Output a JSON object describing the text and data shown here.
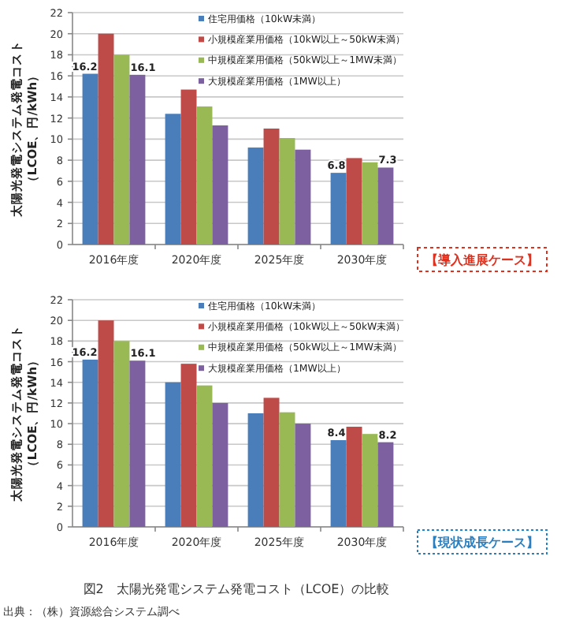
{
  "chart_data": [
    {
      "type": "bar",
      "ylabel": "太陽光発電システム発電コスト（LCOE、円/kWh）",
      "categories": [
        "2016年度",
        "2020年度",
        "2025年度",
        "2030年度"
      ],
      "ylim": [
        0,
        22
      ],
      "yticks": [
        0,
        2,
        4,
        6,
        8,
        10,
        12,
        14,
        16,
        18,
        20,
        22
      ],
      "grid": "y",
      "legend": "top right",
      "series": [
        {
          "name": "住宅用価格（10kW未満）",
          "color": "#4a7ebb",
          "values": [
            16.2,
            12.4,
            9.2,
            6.8
          ],
          "value_labels": [
            "16.2",
            null,
            null,
            "6.8"
          ]
        },
        {
          "name": "小規模産業用価格（10kW以上～50kW未満）",
          "color": "#be4b48",
          "values": [
            20,
            14.7,
            11.0,
            8.2
          ]
        },
        {
          "name": "中規模産業用価格（50kW以上～1MW未満）",
          "color": "#98b954",
          "values": [
            18,
            13.1,
            10.1,
            7.8
          ]
        },
        {
          "name": "大規模産業用価格（1MW以上）",
          "color": "#7d60a0",
          "values": [
            16.1,
            11.3,
            9.0,
            7.3
          ],
          "value_labels": [
            "16.1",
            null,
            null,
            "7.3"
          ]
        }
      ],
      "annotations": [
        "【導入進展ケース】"
      ]
    },
    {
      "type": "bar",
      "ylabel": "太陽光発電システム発電コスト（LCOE、円/kWh）",
      "categories": [
        "2016年度",
        "2020年度",
        "2025年度",
        "2030年度"
      ],
      "ylim": [
        0,
        22
      ],
      "yticks": [
        0,
        2,
        4,
        6,
        8,
        10,
        12,
        14,
        16,
        18,
        20,
        22
      ],
      "grid": "y",
      "legend": "top right",
      "series": [
        {
          "name": "住宅用価格（10kW未満）",
          "color": "#4a7ebb",
          "values": [
            16.2,
            14.0,
            11.0,
            8.4
          ],
          "value_labels": [
            "16.2",
            null,
            null,
            "8.4"
          ]
        },
        {
          "name": "小規模産業用価格（10kW以上～50kW未満）",
          "color": "#be4b48",
          "values": [
            20,
            15.8,
            12.5,
            9.7
          ]
        },
        {
          "name": "中規模産業用価格（50kW以上～1MW未満）",
          "color": "#98b954",
          "values": [
            18,
            13.7,
            11.1,
            9.0
          ]
        },
        {
          "name": "大規模産業用価格（1MW以上）",
          "color": "#7d60a0",
          "values": [
            16.1,
            12.0,
            10.0,
            8.2
          ],
          "value_labels": [
            "16.1",
            null,
            null,
            "8.2"
          ]
        }
      ],
      "annotations": [
        "【現状成長ケース】",
        "図2　太陽光発電システム発電コスト（LCOE）の比較",
        "出典：（株）資源総合システム調べ"
      ]
    }
  ]
}
